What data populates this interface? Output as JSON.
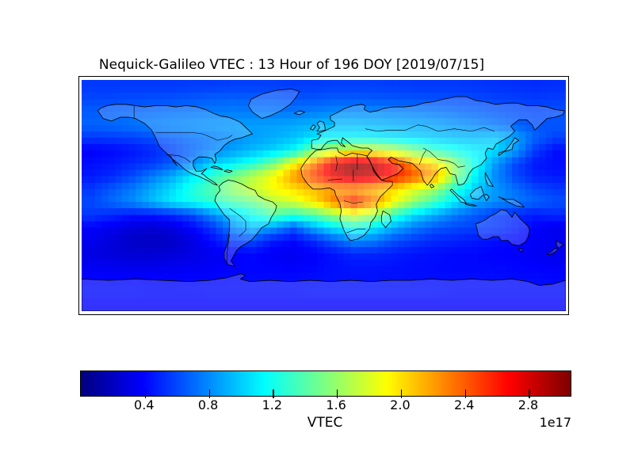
{
  "title": "Nequick-Galileo VTEC : 13 Hour of 196 DOY [2019/07/15]",
  "chart_data": {
    "type": "heatmap",
    "title": "Nequick-Galileo VTEC : 13 Hour of 196 DOY [2019/07/15]",
    "description": "Global ionospheric VTEC map on an equirectangular world projection (lon -180..180, lat -90..90) rendered in 5-degree blocky cells with coastlines and country borders overlaid in black; equatorial ionization maximum (dark red) over North-Central Africa with a secondary crest over Central-Southern Africa",
    "colormap": "jet",
    "projection": {
      "type": "equirectangular",
      "lon_range": [
        -180,
        180
      ],
      "lat_range": [
        -90,
        90
      ]
    },
    "cell_size_deg": 5,
    "legend_position": "horizontal colorbar below map",
    "colorbar": {
      "label": "VTEC",
      "offset_text": "1e17",
      "vmin": 0,
      "vmax": 3.06,
      "ticks": [
        0.4,
        0.8,
        1.2,
        1.6,
        2.0,
        2.4,
        2.8
      ],
      "orientation": "horizontal"
    },
    "peak": {
      "value_1e17": 3.0,
      "lat": 20,
      "lon": 22
    },
    "grid": {
      "units": "1e17",
      "lon_start": -172.5,
      "lon_step": 15,
      "lat_start": 85,
      "lat_step": -10,
      "values_1e17": [
        [
          0.55,
          0.55,
          0.55,
          0.55,
          0.55,
          0.56,
          0.56,
          0.57,
          0.57,
          0.57,
          0.56,
          0.56,
          0.57,
          0.57,
          0.57,
          0.56,
          0.55,
          0.55,
          0.55,
          0.54,
          0.53,
          0.52,
          0.51,
          0.52
        ],
        [
          0.6,
          0.6,
          0.61,
          0.62,
          0.63,
          0.65,
          0.67,
          0.68,
          0.67,
          0.66,
          0.64,
          0.64,
          0.66,
          0.66,
          0.65,
          0.64,
          0.63,
          0.62,
          0.61,
          0.6,
          0.58,
          0.57,
          0.56,
          0.57
        ],
        [
          0.66,
          0.67,
          0.69,
          0.7,
          0.72,
          0.73,
          0.75,
          0.76,
          0.75,
          0.74,
          0.74,
          0.76,
          0.79,
          0.8,
          0.8,
          0.78,
          0.76,
          0.74,
          0.71,
          0.68,
          0.65,
          0.62,
          0.6,
          0.62
        ],
        [
          0.68,
          0.7,
          0.73,
          0.77,
          0.8,
          0.82,
          0.84,
          0.85,
          0.86,
          0.87,
          0.89,
          0.93,
          0.96,
          0.96,
          0.94,
          0.92,
          0.9,
          0.88,
          0.84,
          0.79,
          0.74,
          0.68,
          0.63,
          0.64
        ],
        [
          0.55,
          0.56,
          0.58,
          0.62,
          0.67,
          0.72,
          0.76,
          0.81,
          0.86,
          0.9,
          0.96,
          1.06,
          1.12,
          1.12,
          1.1,
          1.06,
          1.02,
          0.98,
          0.95,
          0.95,
          0.98,
          0.88,
          0.68,
          0.58
        ],
        [
          0.38,
          0.4,
          0.44,
          0.5,
          0.58,
          0.68,
          0.78,
          0.86,
          0.94,
          1.02,
          1.15,
          1.5,
          1.7,
          1.8,
          1.8,
          1.7,
          1.5,
          1.3,
          1.2,
          1.1,
          1.05,
          0.85,
          0.55,
          0.42
        ],
        [
          0.42,
          0.45,
          0.5,
          0.55,
          0.65,
          0.8,
          1.0,
          1.1,
          1.25,
          1.5,
          1.9,
          2.3,
          2.8,
          3.0,
          2.9,
          2.6,
          2.2,
          2.0,
          1.6,
          1.2,
          0.85,
          0.6,
          0.45,
          0.42
        ],
        [
          0.45,
          0.5,
          0.6,
          0.75,
          0.9,
          1.1,
          1.3,
          1.5,
          1.7,
          1.9,
          2.2,
          2.5,
          2.75,
          2.9,
          2.8,
          2.6,
          2.4,
          2.2,
          1.6,
          1.15,
          0.8,
          0.6,
          0.48,
          0.45
        ],
        [
          0.55,
          0.65,
          0.75,
          0.9,
          1.05,
          1.25,
          1.4,
          1.6,
          1.75,
          1.9,
          2.0,
          2.1,
          2.2,
          2.2,
          2.1,
          2.0,
          1.8,
          1.6,
          1.25,
          1.0,
          0.85,
          0.72,
          0.6,
          0.55
        ],
        [
          0.6,
          0.7,
          0.8,
          0.95,
          1.1,
          1.2,
          1.3,
          1.4,
          1.5,
          1.7,
          1.8,
          2.0,
          2.3,
          2.6,
          2.3,
          1.9,
          1.6,
          1.35,
          1.1,
          0.9,
          0.82,
          0.75,
          0.68,
          0.62
        ],
        [
          0.55,
          0.5,
          0.45,
          0.45,
          0.5,
          0.6,
          0.8,
          1.0,
          1.2,
          1.4,
          1.3,
          1.4,
          1.6,
          1.8,
          1.6,
          1.3,
          1.05,
          0.9,
          0.75,
          0.65,
          0.55,
          0.5,
          0.46,
          0.5
        ],
        [
          0.38,
          0.33,
          0.28,
          0.25,
          0.3,
          0.4,
          0.55,
          0.8,
          0.95,
          0.85,
          0.65,
          0.9,
          1.1,
          1.2,
          1.1,
          0.9,
          0.75,
          0.65,
          0.6,
          0.58,
          0.55,
          0.48,
          0.38,
          0.33
        ],
        [
          0.33,
          0.28,
          0.22,
          0.2,
          0.22,
          0.3,
          0.42,
          0.55,
          0.6,
          0.45,
          0.4,
          0.5,
          0.65,
          0.8,
          0.75,
          0.62,
          0.55,
          0.5,
          0.48,
          0.45,
          0.42,
          0.4,
          0.36,
          0.34
        ],
        [
          0.3,
          0.27,
          0.25,
          0.25,
          0.27,
          0.3,
          0.34,
          0.38,
          0.4,
          0.36,
          0.34,
          0.38,
          0.44,
          0.5,
          0.5,
          0.47,
          0.44,
          0.42,
          0.4,
          0.4,
          0.38,
          0.37,
          0.35,
          0.32
        ],
        [
          0.34,
          0.33,
          0.32,
          0.32,
          0.33,
          0.34,
          0.36,
          0.38,
          0.39,
          0.38,
          0.37,
          0.39,
          0.42,
          0.44,
          0.44,
          0.43,
          0.42,
          0.41,
          0.4,
          0.4,
          0.4,
          0.39,
          0.38,
          0.36
        ],
        [
          0.4,
          0.4,
          0.39,
          0.39,
          0.39,
          0.4,
          0.4,
          0.41,
          0.41,
          0.41,
          0.41,
          0.42,
          0.43,
          0.43,
          0.43,
          0.43,
          0.42,
          0.42,
          0.42,
          0.42,
          0.42,
          0.41,
          0.41,
          0.4
        ],
        [
          0.42,
          0.42,
          0.42,
          0.41,
          0.41,
          0.41,
          0.42,
          0.42,
          0.42,
          0.42,
          0.42,
          0.43,
          0.43,
          0.43,
          0.43,
          0.43,
          0.43,
          0.43,
          0.42,
          0.42,
          0.42,
          0.42,
          0.42,
          0.42
        ],
        [
          0.38,
          0.38,
          0.38,
          0.38,
          0.38,
          0.38,
          0.38,
          0.38,
          0.38,
          0.38,
          0.38,
          0.38,
          0.38,
          0.38,
          0.38,
          0.38,
          0.38,
          0.38,
          0.38,
          0.38,
          0.38,
          0.38,
          0.38,
          0.38
        ]
      ]
    }
  }
}
